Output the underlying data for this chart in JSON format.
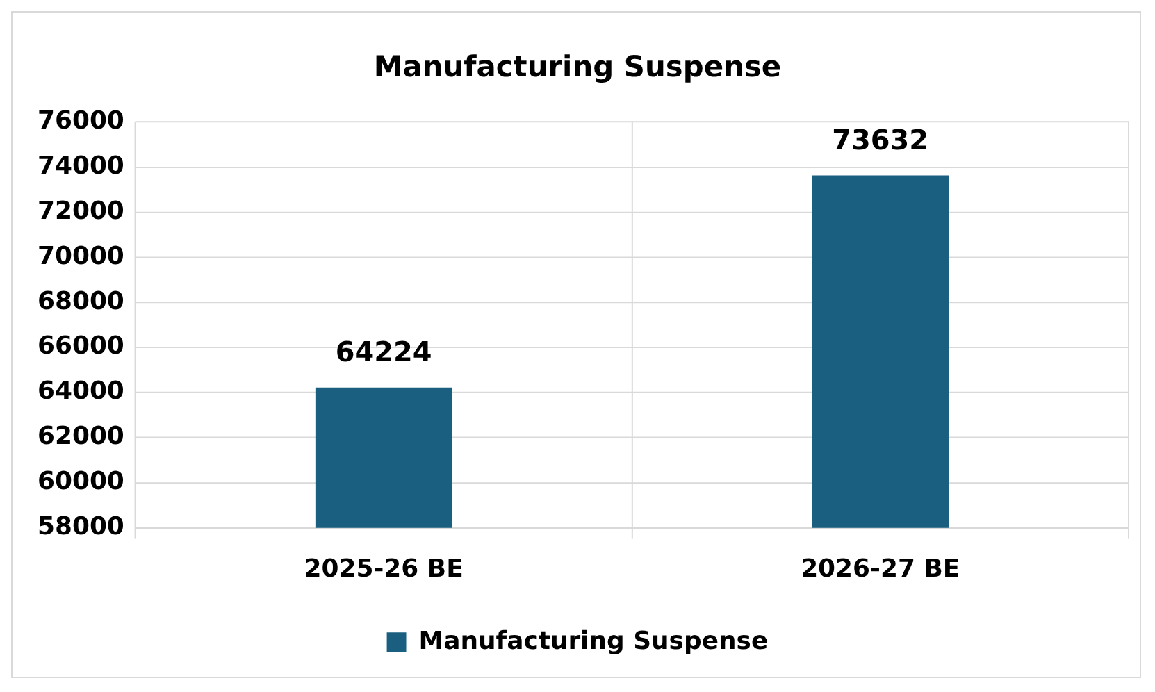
{
  "chart_data": {
    "type": "bar",
    "title": "Manufacturing Suspense",
    "categories": [
      "2025-26 BE",
      "2026-27 BE"
    ],
    "series": [
      {
        "name": "Manufacturing Suspense",
        "color": "#1a5f80",
        "values": [
          64224,
          73632
        ]
      }
    ],
    "ylim": [
      58000,
      76000
    ],
    "yticks": [
      58000,
      60000,
      62000,
      64000,
      66000,
      68000,
      70000,
      72000,
      74000,
      76000
    ],
    "grid": true,
    "legend": "bottom",
    "data_labels": true
  }
}
